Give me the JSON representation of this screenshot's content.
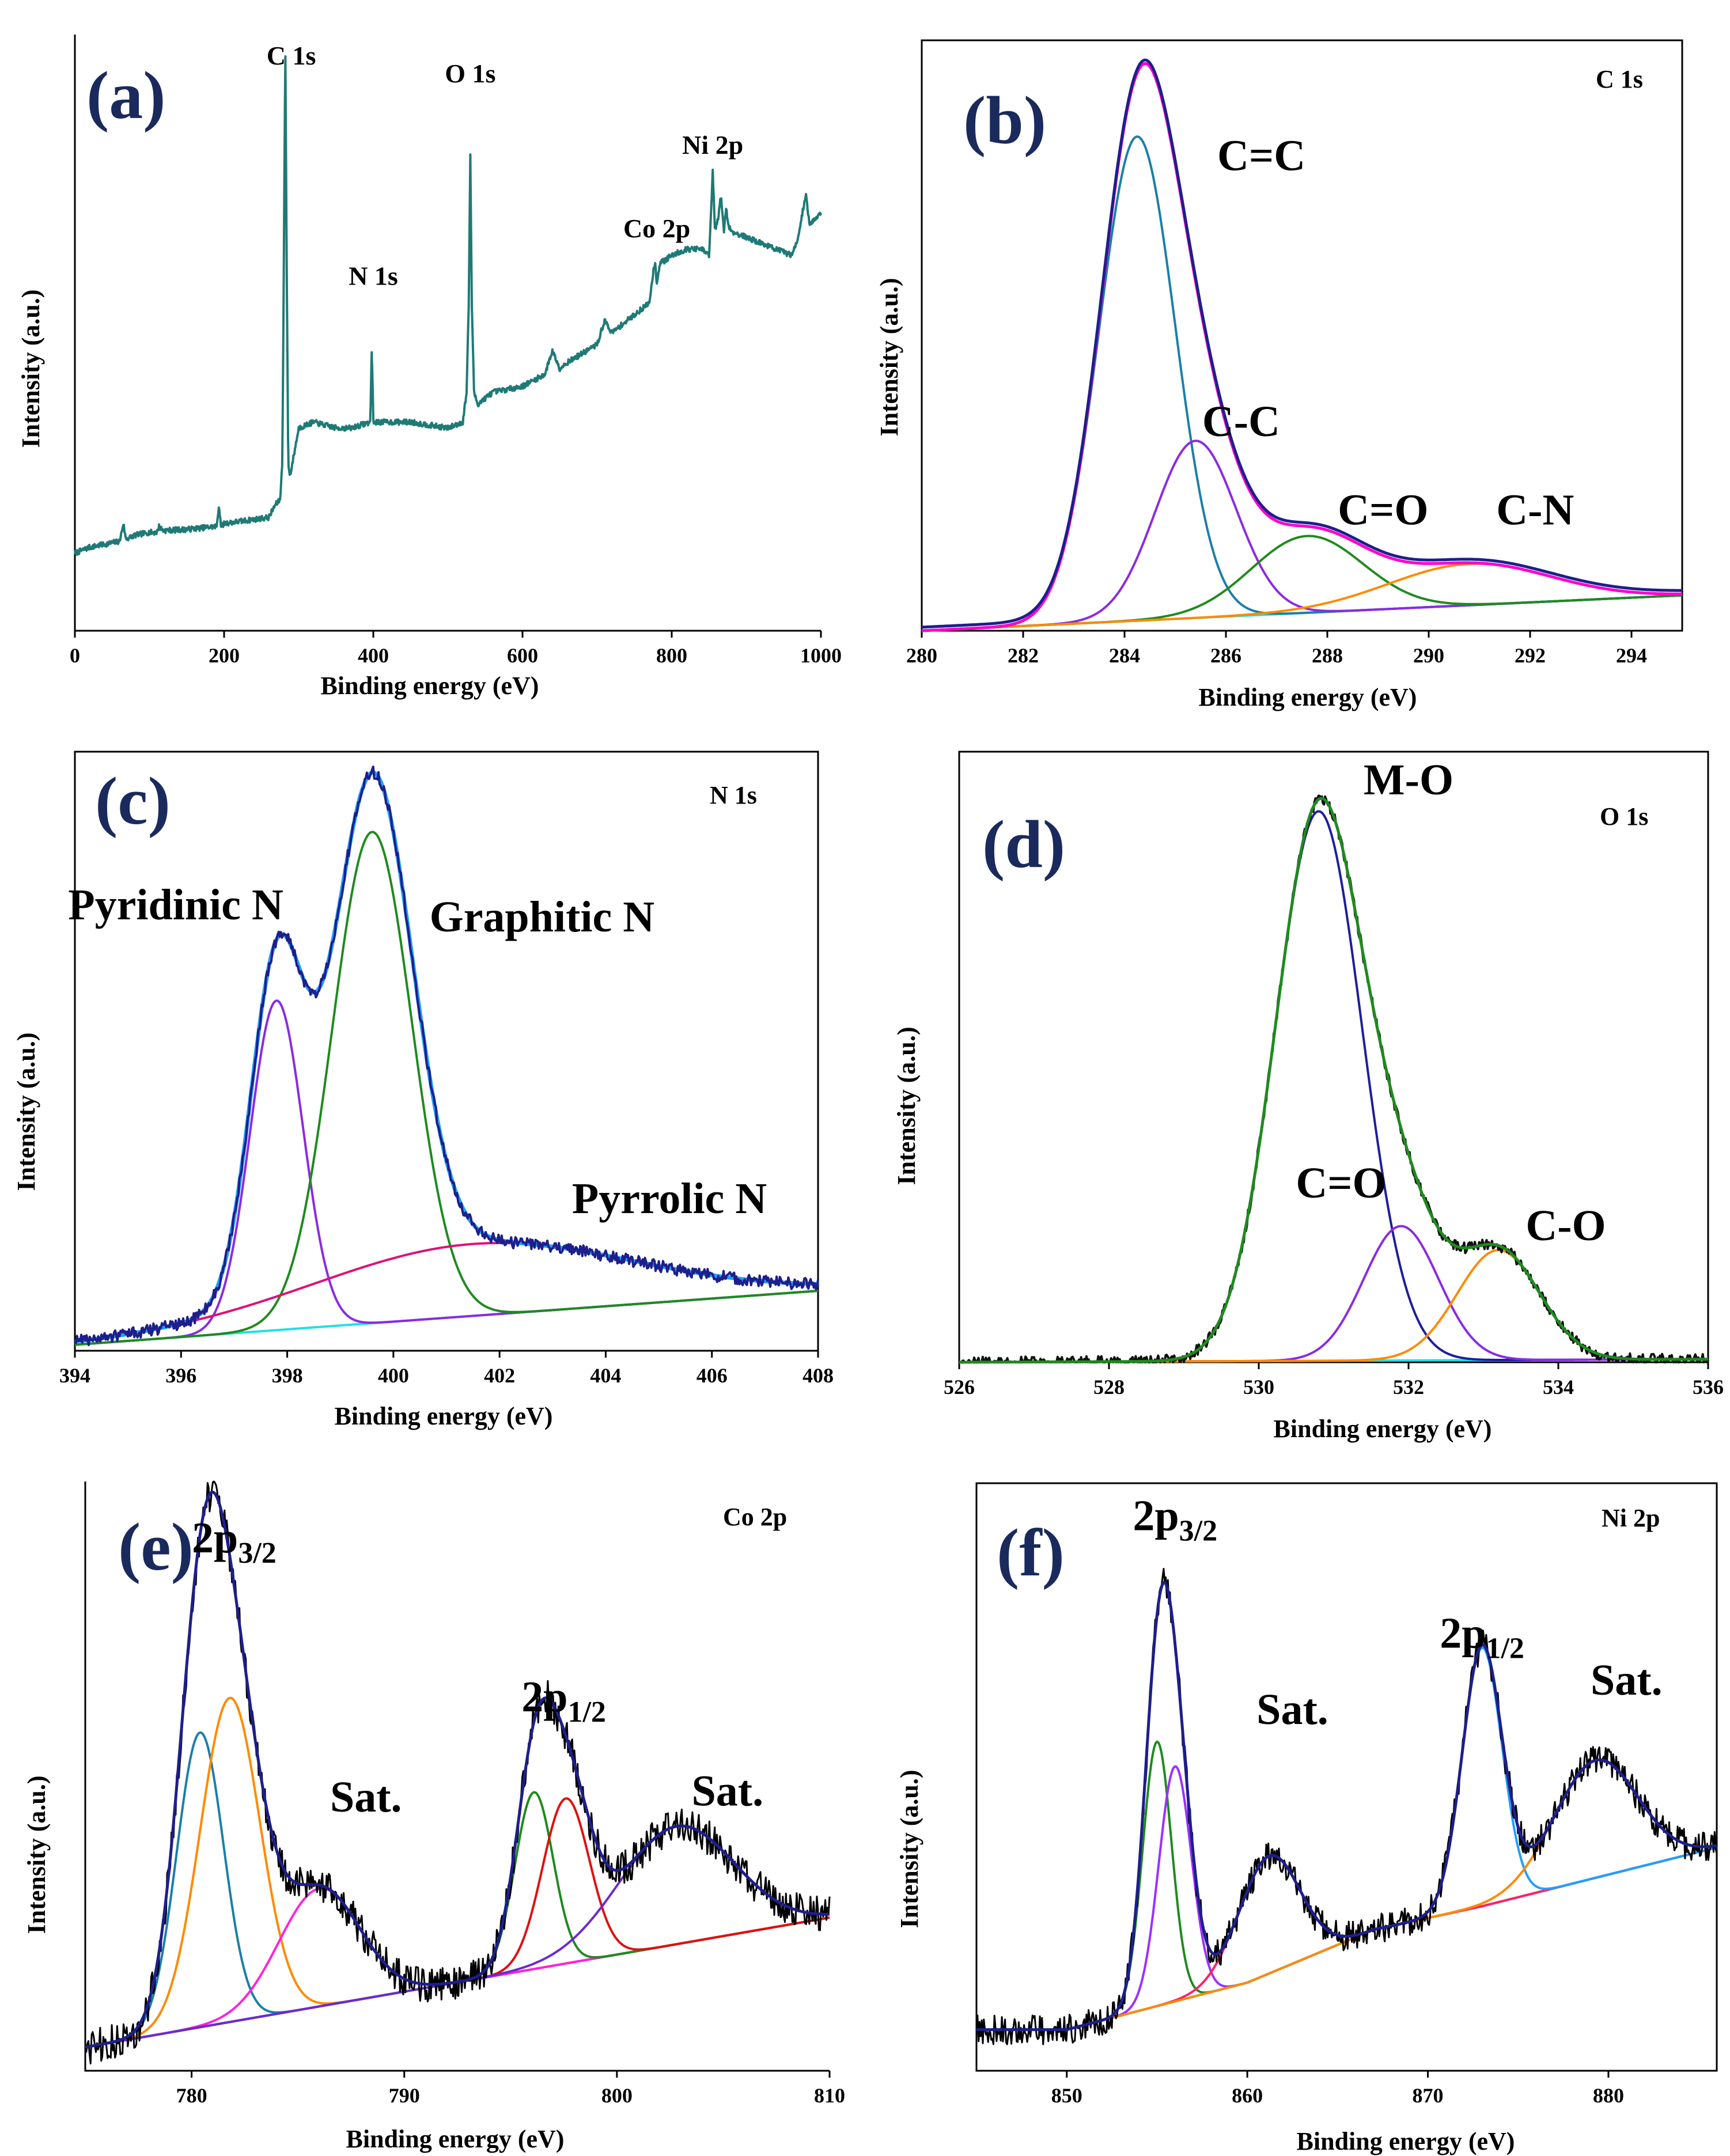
{
  "chart_data": [
    {
      "id": "a",
      "type": "line",
      "panel_label": "(a)",
      "core_label": "",
      "xlabel": "Binding energy (eV)",
      "ylabel": "Intensity (a.u.)",
      "xlim": [
        0,
        1000
      ],
      "ylim": [
        0,
        100
      ],
      "xticks": [
        0,
        200,
        400,
        600,
        800,
        1000
      ],
      "box": "open",
      "series": [
        {
          "name": "survey",
          "color": "#1f7a76",
          "width": 4,
          "noise": 0.9,
          "x": [
            0,
            20,
            40,
            60,
            65,
            68,
            71,
            80,
            100,
            110,
            113,
            118,
            150,
            190,
            193,
            196,
            200,
            260,
            268,
            275,
            278,
            280,
            282,
            284,
            286,
            288,
            290,
            300,
            320,
            350,
            370,
            396,
            398,
            400,
            402,
            410,
            450,
            500,
            520,
            525,
            528,
            530,
            532,
            535,
            540,
            560,
            600,
            630,
            640,
            650,
            660,
            700,
            710,
            720,
            740,
            760,
            770,
            775,
            778,
            780,
            782,
            785,
            790,
            800,
            820,
            840,
            850,
            852,
            855,
            858,
            862,
            866,
            870,
            873,
            876,
            880,
            900,
            940,
            960,
            970,
            975,
            980,
            985,
            990,
            1000
          ],
          "y": [
            13,
            14,
            14.5,
            15,
            18,
            15.5,
            15.5,
            16,
            16.5,
            16.5,
            17.5,
            16.8,
            17,
            17.5,
            21,
            17.5,
            18,
            19,
            21,
            22,
            28,
            60,
            99,
            60,
            28,
            26,
            27,
            34,
            35,
            34,
            34,
            35,
            48,
            35,
            35,
            35,
            35,
            34,
            35,
            40,
            55,
            80,
            55,
            40,
            38,
            40,
            41,
            43,
            47,
            44,
            45,
            48,
            52,
            50,
            52,
            54,
            55,
            60,
            62,
            58,
            60,
            62,
            62,
            63,
            64,
            64,
            63,
            68,
            77,
            67,
            69,
            73,
            67,
            71,
            68,
            67,
            66,
            64,
            63,
            66,
            70,
            73,
            68,
            69,
            70
          ]
        }
      ],
      "annotations": [
        {
          "text": "C 1s",
          "x": 290,
          "y": 95
        },
        {
          "text": "O 1s",
          "x": 530,
          "y": 92
        },
        {
          "text": "N 1s",
          "x": 400,
          "y": 58
        },
        {
          "text": "Co 2p",
          "x": 780,
          "y": 66
        },
        {
          "text": "Ni 2p",
          "x": 855,
          "y": 80
        }
      ]
    },
    {
      "id": "b",
      "type": "line",
      "panel_label": "(b)",
      "core_label": "C 1s",
      "xlabel": "Binding energy (eV)",
      "ylabel": "Intensity (a.u.)",
      "xlim": [
        280,
        295
      ],
      "ylim": [
        0,
        100
      ],
      "xticks": [
        280,
        282,
        284,
        286,
        288,
        290,
        292,
        294
      ],
      "box": "full",
      "series": [
        {
          "name": "background",
          "color": "#1ee0e6",
          "width": 4,
          "x": [
            280,
            295
          ],
          "y": [
            0,
            6
          ]
        },
        {
          "name": "C=C",
          "color": "#1b7fa8",
          "width": 4,
          "peak": [
            284.25,
            82,
            0.75
          ]
        },
        {
          "name": "C-C",
          "color": "#8a2be2",
          "width": 4,
          "peak": [
            285.4,
            30,
            0.8
          ]
        },
        {
          "name": "C=O",
          "color": "#1f8a1f",
          "width": 4,
          "peak": [
            287.6,
            13,
            1.1
          ]
        },
        {
          "name": "C-N",
          "color": "#ff8a00",
          "width": 4,
          "peak": [
            290.8,
            7,
            1.6
          ]
        },
        {
          "name": "fit",
          "color": "#ff00cc",
          "width": 5,
          "envelope": true,
          "bg": true
        },
        {
          "name": "raw",
          "color": "#1e1e8c",
          "width": 5,
          "envelope": true,
          "bg": true,
          "offset": 0.6
        }
      ],
      "annotations": [
        {
          "text": "C=C",
          "x": 286.7,
          "y": 78
        },
        {
          "text": "C-C",
          "x": 286.3,
          "y": 33
        },
        {
          "text": "C=O",
          "x": 289.1,
          "y": 18
        },
        {
          "text": "C-N",
          "x": 292.1,
          "y": 18
        }
      ]
    },
    {
      "id": "c",
      "type": "line",
      "panel_label": "(c)",
      "core_label": "N 1s",
      "xlabel": "Binding energy (eV)",
      "ylabel": "Intensity (a.u.)",
      "xlim": [
        394,
        408
      ],
      "ylim": [
        0,
        100
      ],
      "xticks": [
        394,
        396,
        398,
        400,
        402,
        404,
        406,
        408
      ],
      "box": "full",
      "series": [
        {
          "name": "background",
          "color": "#1ee0e6",
          "width": 4,
          "x": [
            394,
            408
          ],
          "y": [
            1,
            10
          ]
        },
        {
          "name": "Pyridinic N",
          "color": "#8a2be2",
          "width": 4,
          "peak": [
            397.8,
            55,
            0.5
          ]
        },
        {
          "name": "Graphitic N",
          "color": "#1f8a1f",
          "width": 4,
          "peak": [
            399.6,
            82,
            0.75
          ]
        },
        {
          "name": "Pyrrolic N",
          "color": "#dd1177",
          "width": 4,
          "peak": [
            401.5,
            12,
            3.0
          ]
        },
        {
          "name": "fit",
          "color": "#1ea0ff",
          "width": 7,
          "envelope": true,
          "bg": true
        },
        {
          "name": "raw",
          "color": "#1e1e8c",
          "width": 4,
          "envelope": true,
          "bg": true,
          "noise": 1.0
        }
      ],
      "annotations": [
        {
          "text": "Pyridinic N",
          "x": 395.9,
          "y": 72
        },
        {
          "text": "Graphitic N",
          "x": 402.8,
          "y": 70
        },
        {
          "text": "Pyrrolic N",
          "x": 405.2,
          "y": 23
        }
      ]
    },
    {
      "id": "d",
      "type": "line",
      "panel_label": "(d)",
      "core_label": "O 1s",
      "xlabel": "Binding energy (eV)",
      "ylabel": "Intensity (a.u.)",
      "xlim": [
        526,
        536
      ],
      "ylim": [
        0,
        100
      ],
      "xticks": [
        526,
        528,
        530,
        532,
        534,
        536
      ],
      "box": "full",
      "series": [
        {
          "name": "background",
          "color": "#1ee0e6",
          "width": 4,
          "x": [
            526,
            536
          ],
          "y": [
            0,
            0.5
          ]
        },
        {
          "name": "M-O",
          "color": "#1e1e9c",
          "width": 4,
          "peak": [
            530.8,
            90,
            0.58
          ]
        },
        {
          "name": "C=O",
          "color": "#8a2be2",
          "width": 4,
          "peak": [
            531.9,
            22,
            0.5
          ]
        },
        {
          "name": "C-O",
          "color": "#ff8a00",
          "width": 4,
          "peak": [
            533.2,
            18,
            0.55
          ]
        },
        {
          "name": "raw",
          "color": "#111111",
          "width": 4,
          "envelope": true,
          "bg": true,
          "noise": 0.9
        },
        {
          "name": "fit",
          "color": "#1f8a1f",
          "width": 5,
          "envelope": true,
          "bg": true
        }
      ],
      "annotations": [
        {
          "text": "M-O",
          "x": 532.0,
          "y": 93
        },
        {
          "text": "C=O",
          "x": 531.1,
          "y": 27
        },
        {
          "text": "C-O",
          "x": 534.1,
          "y": 20
        }
      ]
    },
    {
      "id": "e",
      "type": "line",
      "panel_label": "(e)",
      "core_label": "Co 2p",
      "xlabel": "Binding energy (eV)",
      "ylabel": "Intensity (a.u.)",
      "xlim": [
        775,
        810
      ],
      "ylim": [
        0,
        100
      ],
      "xticks": [
        780,
        790,
        800,
        810
      ],
      "box": "open",
      "series": [
        {
          "name": "background",
          "color": "#1ee0e6",
          "width": 4,
          "x": [
            775,
            810
          ],
          "y": [
            4,
            26
          ]
        },
        {
          "name": "peak 1",
          "color": "#1b7fa8",
          "width": 4,
          "peak": [
            780.4,
            50,
            1.1
          ]
        },
        {
          "name": "peak 2",
          "color": "#ff8a00",
          "width": 4,
          "peak": [
            781.8,
            55,
            1.4
          ]
        },
        {
          "name": "Sat. 1",
          "color": "#ff22dd",
          "width": 4,
          "peak": [
            786.0,
            20,
            1.9
          ]
        },
        {
          "name": "peak 3",
          "color": "#1f8a1f",
          "width": 4,
          "peak": [
            796.1,
            30,
            0.9
          ]
        },
        {
          "name": "peak 4",
          "color": "#e01010",
          "width": 4,
          "peak": [
            797.6,
            28,
            1.1
          ]
        },
        {
          "name": "Sat. 2",
          "color": "#6a2bd2",
          "width": 4,
          "peak": [
            802.8,
            20,
            2.7
          ]
        },
        {
          "name": "raw",
          "color": "#000000",
          "width": 3,
          "envelope": true,
          "bg": true,
          "noise": 3.0
        },
        {
          "name": "fit",
          "color": "#1e1e8c",
          "width": 5,
          "envelope": true,
          "bg": true
        }
      ],
      "annotations": [
        {
          "text": "2p",
          "sub": "3/2",
          "x": 782,
          "y": 88
        },
        {
          "text": "Sat.",
          "x": 788.2,
          "y": 44
        },
        {
          "text": "2p",
          "sub": "1/2",
          "x": 797.5,
          "y": 61
        },
        {
          "text": "Sat.",
          "x": 805.2,
          "y": 45
        }
      ]
    },
    {
      "id": "f",
      "type": "line",
      "panel_label": "(f)",
      "core_label": "Ni 2p",
      "xlabel": "Binding energy (eV)",
      "ylabel": "Intensity (a.u.)",
      "xlim": [
        845,
        886
      ],
      "ylim": [
        0,
        100
      ],
      "xticks": [
        850,
        860,
        870,
        880
      ],
      "box": "full",
      "series": [
        {
          "name": "background",
          "color": "#1ee0e6",
          "width": 4,
          "x": [
            845,
            850,
            860,
            867,
            873,
            886
          ],
          "y": [
            7,
            7,
            15,
            24,
            28,
            38
          ]
        },
        {
          "name": "peak 1",
          "color": "#1f8a1f",
          "width": 4,
          "peak": [
            855.0,
            45,
            0.8
          ]
        },
        {
          "name": "peak 2",
          "color": "#9b30ff",
          "width": 4,
          "peak": [
            856.0,
            40,
            0.9
          ]
        },
        {
          "name": "Sat. 1",
          "color": "#ff2266",
          "width": 4,
          "peak": [
            861.2,
            20,
            1.7
          ]
        },
        {
          "name": "2p1/2",
          "color": "#1ea0ff",
          "width": 4,
          "peak": [
            873.0,
            44,
            1.1
          ]
        },
        {
          "name": "Sat. 2",
          "color": "#ff8a00",
          "width": 4,
          "peak": [
            879.3,
            20,
            2.3
          ]
        },
        {
          "name": "raw",
          "color": "#000000",
          "width": 3,
          "envelope": true,
          "bg": true,
          "noise": 2.5
        },
        {
          "name": "fit",
          "color": "#1e1e8c",
          "width": 5,
          "envelope": true,
          "bg": true
        }
      ],
      "annotations": [
        {
          "text": "2p",
          "sub": "3/2",
          "x": 856,
          "y": 92
        },
        {
          "text": "Sat.",
          "x": 862.5,
          "y": 59
        },
        {
          "text": "2p",
          "sub": "1/2",
          "x": 873,
          "y": 72
        },
        {
          "text": "Sat.",
          "x": 881,
          "y": 64
        }
      ]
    }
  ]
}
